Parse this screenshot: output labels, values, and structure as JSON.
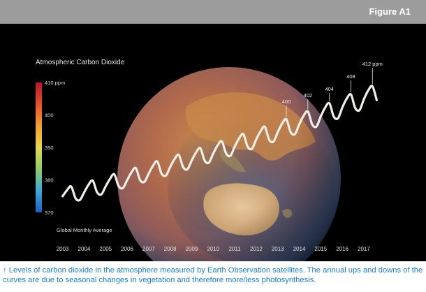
{
  "header": {
    "figure_label": "Figure A1"
  },
  "chart_data": {
    "type": "line",
    "title": "Atmospheric Carbon Dioxide",
    "subtitle": "Global Monthly Average",
    "x": [
      2003,
      2003.2,
      2003.4,
      2003.6,
      2003.8,
      2004,
      2004.2,
      2004.4,
      2004.6,
      2004.8,
      2005,
      2005.2,
      2005.4,
      2005.6,
      2005.8,
      2006,
      2006.2,
      2006.4,
      2006.6,
      2006.8,
      2007,
      2007.2,
      2007.4,
      2007.6,
      2007.8,
      2008,
      2008.2,
      2008.4,
      2008.6,
      2008.8,
      2009,
      2009.2,
      2009.4,
      2009.6,
      2009.8,
      2010,
      2010.2,
      2010.4,
      2010.6,
      2010.8,
      2011,
      2011.2,
      2011.4,
      2011.6,
      2011.8,
      2012,
      2012.2,
      2012.4,
      2012.6,
      2012.8,
      2013,
      2013.2,
      2013.4,
      2013.6,
      2013.8,
      2014,
      2014.2,
      2014.4,
      2014.6,
      2014.8,
      2015,
      2015.2,
      2015.4,
      2015.6,
      2015.8,
      2016,
      2016.2,
      2016.4,
      2016.6,
      2016.8,
      2017,
      2017.2,
      2017.4,
      2017.6
    ],
    "y": [
      374,
      375.9,
      377.1,
      373.4,
      372.8,
      375.2,
      377.6,
      379,
      375.3,
      374.6,
      377.1,
      379.5,
      381,
      377.3,
      376.6,
      379.1,
      381.6,
      383,
      379.2,
      378.6,
      381.2,
      383.7,
      385.1,
      381.2,
      380.6,
      383.3,
      385.8,
      387.2,
      383.3,
      382.6,
      385.4,
      387.9,
      389.3,
      385.4,
      384.7,
      387.6,
      390.1,
      391.5,
      387.6,
      386.9,
      389.8,
      392.4,
      393.8,
      389.8,
      389.1,
      392.1,
      394.7,
      396.1,
      392,
      391.4,
      394.4,
      397.1,
      398.5,
      394.4,
      393.8,
      396.9,
      399.6,
      401,
      396.9,
      396.2,
      399.4,
      402.2,
      403.6,
      399.4,
      398.8,
      402.2,
      405,
      406.4,
      402.1,
      401.4,
      404.8,
      407.6,
      409,
      404.6
    ],
    "xticks": [
      2003,
      2004,
      2005,
      2006,
      2007,
      2008,
      2009,
      2010,
      2011,
      2012,
      2013,
      2014,
      2015,
      2016,
      2017
    ],
    "xlim": [
      2002.85,
      2018.3
    ],
    "ylim": [
      370,
      410
    ],
    "colorbar": {
      "labels": [
        "410 ppm",
        "400",
        "390",
        "380",
        "370"
      ],
      "values": [
        410,
        400,
        390,
        380,
        370
      ],
      "colors": [
        "#b2182b",
        "#e4502a",
        "#f0a030",
        "#e8d848",
        "#8ecb6a",
        "#3da8d8",
        "#1f5fbf"
      ]
    },
    "annotations": [
      {
        "label": "400",
        "x": 2013,
        "y": 400
      },
      {
        "label": "402",
        "x": 2014,
        "y": 402
      },
      {
        "label": "404",
        "x": 2015,
        "y": 404
      },
      {
        "label": "408",
        "x": 2016,
        "y": 408
      },
      {
        "label": "412 ppm",
        "x": 2017,
        "y": 412
      }
    ],
    "line_color": "#f2eee8",
    "background": "#000000"
  },
  "caption": "↑ Levels of carbon dioxide in the atmosphere measured by Earth Observation satellites. The annual ups and downs of the curves are due to seasonal changes in vegetation and therefore more/less photosynthesis."
}
